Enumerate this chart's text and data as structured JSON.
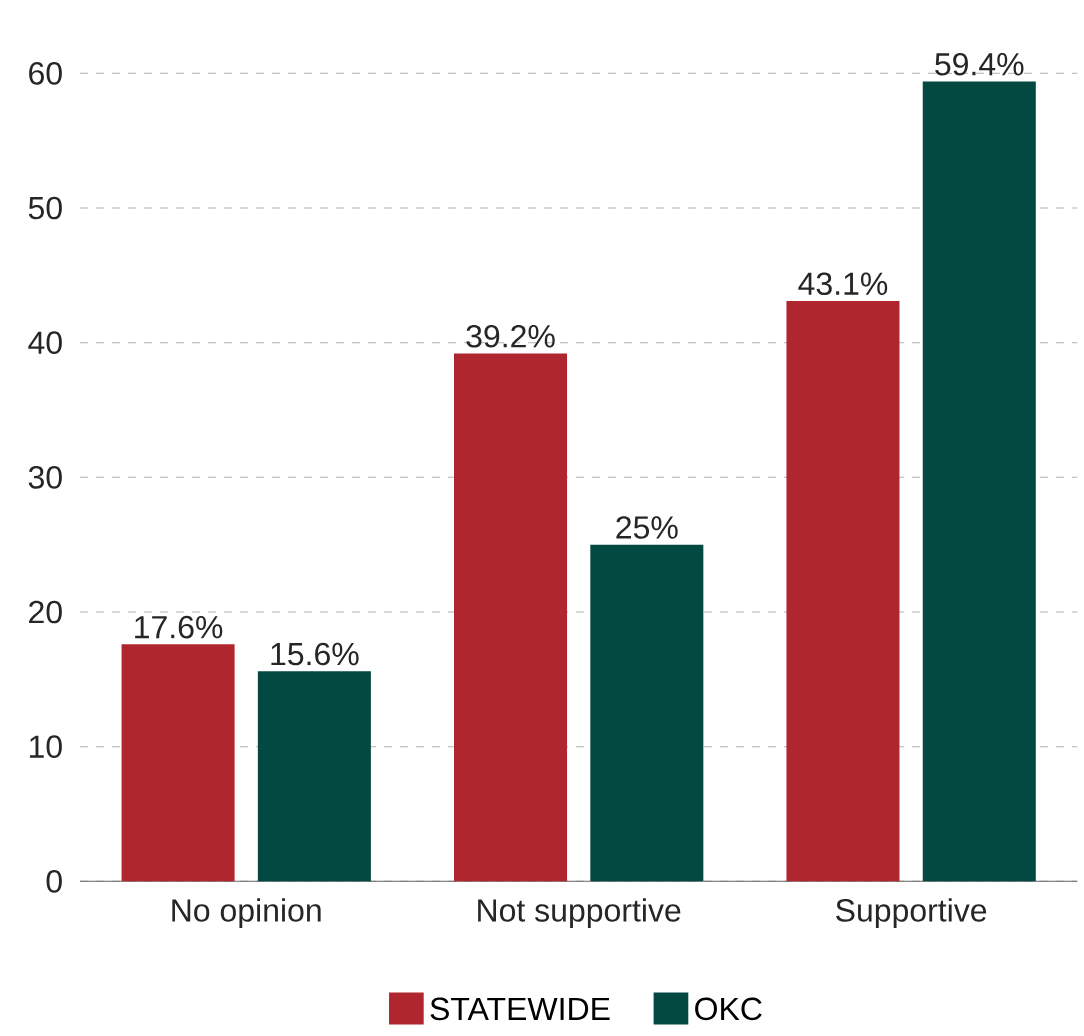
{
  "chart_data": {
    "type": "bar",
    "categories": [
      "No opinion",
      "Not supportive",
      "Supportive"
    ],
    "series": [
      {
        "name": "STATEWIDE",
        "color": "#b0262f",
        "values": [
          17.6,
          39.2,
          43.1
        ],
        "value_labels": [
          "17.6%",
          "39.2%",
          "43.1%"
        ]
      },
      {
        "name": "OKC",
        "color": "#034841",
        "values": [
          15.6,
          25,
          59.4
        ],
        "value_labels": [
          "15.6%",
          "25%",
          "59.4%"
        ]
      }
    ],
    "ylim": [
      0,
      60
    ],
    "yticks": [
      0,
      10,
      20,
      30,
      40,
      50,
      60
    ],
    "grid": "y",
    "legend": "bottom"
  }
}
